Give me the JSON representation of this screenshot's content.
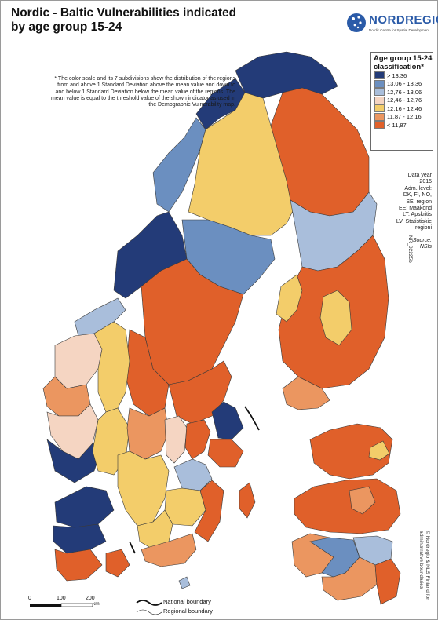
{
  "map": {
    "title": "Nordic - Baltic Vulnerabilities indicated by age group 15-24",
    "org_name": "NORDREGIO",
    "org_subtitle": "Nordic Centre for Spatial Development",
    "note": "* The color scale and its 7 subdivisions show the distribution of the regions from and above 1 Standard Deviation above the mean value and down to and below 1 Standard Deviation below the mean value of the regions. The mean value is equal to the threshold value of the shown indicator as used in the Demographic Vulnerability map.",
    "legend": {
      "title": "Age group 15-24 classification*",
      "classes": [
        {
          "label": "> 13,36",
          "color": "#233b78"
        },
        {
          "label": "13,06 - 13,36",
          "color": "#6b8fc0"
        },
        {
          "label": "12,76 - 13,06",
          "color": "#a9bedb"
        },
        {
          "label": "12,46 - 12,76",
          "color": "#f5d5c2"
        },
        {
          "label": "12,16 - 12,46",
          "color": "#f3cd6a"
        },
        {
          "label": "11,87 - 12,16",
          "color": "#eb9660"
        },
        {
          "label": "< 11,87",
          "color": "#e0602a"
        }
      ]
    },
    "data_info": [
      "Data year",
      "2015",
      "Adm. level:",
      "DK, FI, NO,",
      "SE: region",
      "EE: Maakond",
      "LT: Apskritis",
      "LV: Statistiskie",
      "regioni"
    ],
    "source": [
      "Source:",
      "NSIs"
    ],
    "map_id": "NR_02225b",
    "copyright": [
      "© Nordregio & NLS Finland for",
      "administrative boundaries"
    ],
    "scale": {
      "labels": [
        "0",
        "100",
        "200"
      ],
      "unit": "km"
    },
    "boundary_legend": {
      "national": "National boundary",
      "regional": "Regional boundary"
    },
    "sea_color": "#ffffff",
    "region_stroke": "#3a3a3a"
  }
}
